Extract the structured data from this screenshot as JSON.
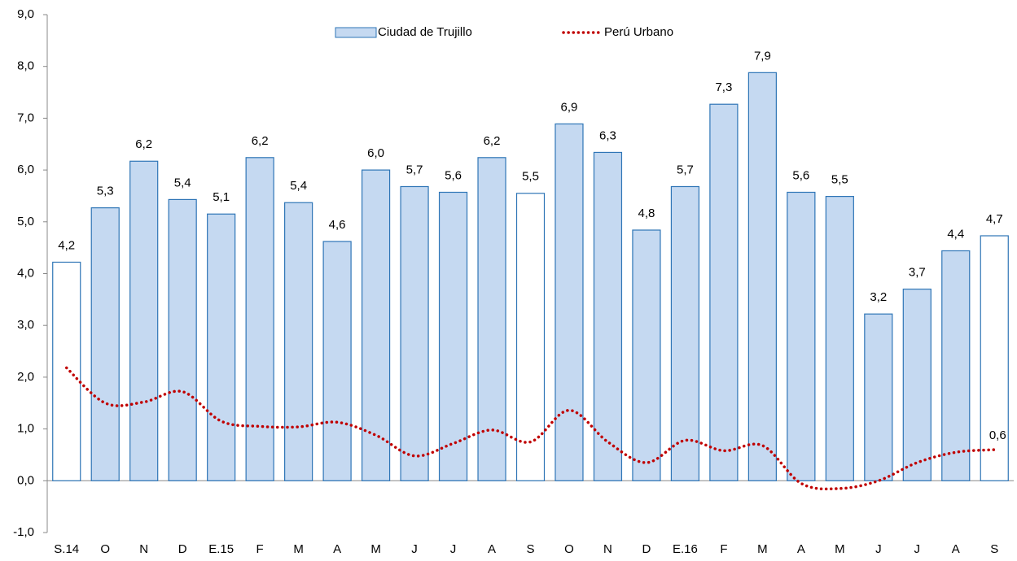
{
  "chart_data": {
    "type": "bar",
    "categories": [
      "S.14",
      "O",
      "N",
      "D",
      "E.15",
      "F",
      "M",
      "A",
      "M",
      "J",
      "J",
      "A",
      "S",
      "O",
      "N",
      "D",
      "E.16",
      "F",
      "M",
      "A",
      "M",
      "J",
      "J",
      "A",
      "S"
    ],
    "series": [
      {
        "name": "Ciudad de Trujillo",
        "type": "bar",
        "color": "#c5d9f1",
        "edge_color": "#2e75b6",
        "colors": [
          "#ffffff",
          "#c5d9f1",
          "#c5d9f1",
          "#c5d9f1",
          "#c5d9f1",
          "#c5d9f1",
          "#c5d9f1",
          "#c5d9f1",
          "#c5d9f1",
          "#c5d9f1",
          "#c5d9f1",
          "#c5d9f1",
          "#ffffff",
          "#c5d9f1",
          "#c5d9f1",
          "#c5d9f1",
          "#c5d9f1",
          "#c5d9f1",
          "#c5d9f1",
          "#c5d9f1",
          "#c5d9f1",
          "#c5d9f1",
          "#c5d9f1",
          "#c5d9f1",
          "#ffffff"
        ],
        "values": [
          4.22,
          5.27,
          6.17,
          5.43,
          5.15,
          6.24,
          5.37,
          4.62,
          6.0,
          5.68,
          5.57,
          6.24,
          5.55,
          6.89,
          6.34,
          4.84,
          5.68,
          7.27,
          7.88,
          5.57,
          5.49,
          3.22,
          3.7,
          4.44,
          4.73
        ],
        "value_labels": [
          "4,2",
          "5,3",
          "6,2",
          "5,4",
          "5,1",
          "6,2",
          "5,4",
          "4,6",
          "6,0",
          "5,7",
          "5,6",
          "6,2",
          "5,5",
          "6,9",
          "6,3",
          "4,8",
          "5,7",
          "7,3",
          "7,9",
          "5,6",
          "5,5",
          "3,2",
          "3,7",
          "4,4",
          "4,7"
        ]
      },
      {
        "name": "Perú Urbano",
        "type": "line",
        "color": "#c00000",
        "values": [
          2.18,
          1.5,
          1.52,
          1.72,
          1.15,
          1.05,
          1.04,
          1.13,
          0.88,
          0.48,
          0.72,
          0.98,
          0.75,
          1.36,
          0.75,
          0.35,
          0.78,
          0.58,
          0.68,
          -0.05,
          -0.15,
          0.0,
          0.35,
          0.55,
          0.6
        ],
        "value_labels": [
          null,
          null,
          null,
          null,
          null,
          null,
          null,
          null,
          null,
          null,
          null,
          null,
          null,
          null,
          null,
          null,
          null,
          null,
          null,
          null,
          null,
          null,
          null,
          null,
          "0,6"
        ]
      }
    ],
    "ylim": [
      -1,
      9
    ],
    "yticks": [
      {
        "value": -1,
        "label": "-1,0"
      },
      {
        "value": 0,
        "label": "0,0"
      },
      {
        "value": 1,
        "label": "1,0"
      },
      {
        "value": 2,
        "label": "2,0"
      },
      {
        "value": 3,
        "label": "3,0"
      },
      {
        "value": 4,
        "label": "4,0"
      },
      {
        "value": 5,
        "label": "5,0"
      },
      {
        "value": 6,
        "label": "6,0"
      },
      {
        "value": 7,
        "label": "7,0"
      },
      {
        "value": 8,
        "label": "8,0"
      },
      {
        "value": 9,
        "label": "9,0"
      }
    ],
    "grid": false,
    "legend": "top"
  }
}
